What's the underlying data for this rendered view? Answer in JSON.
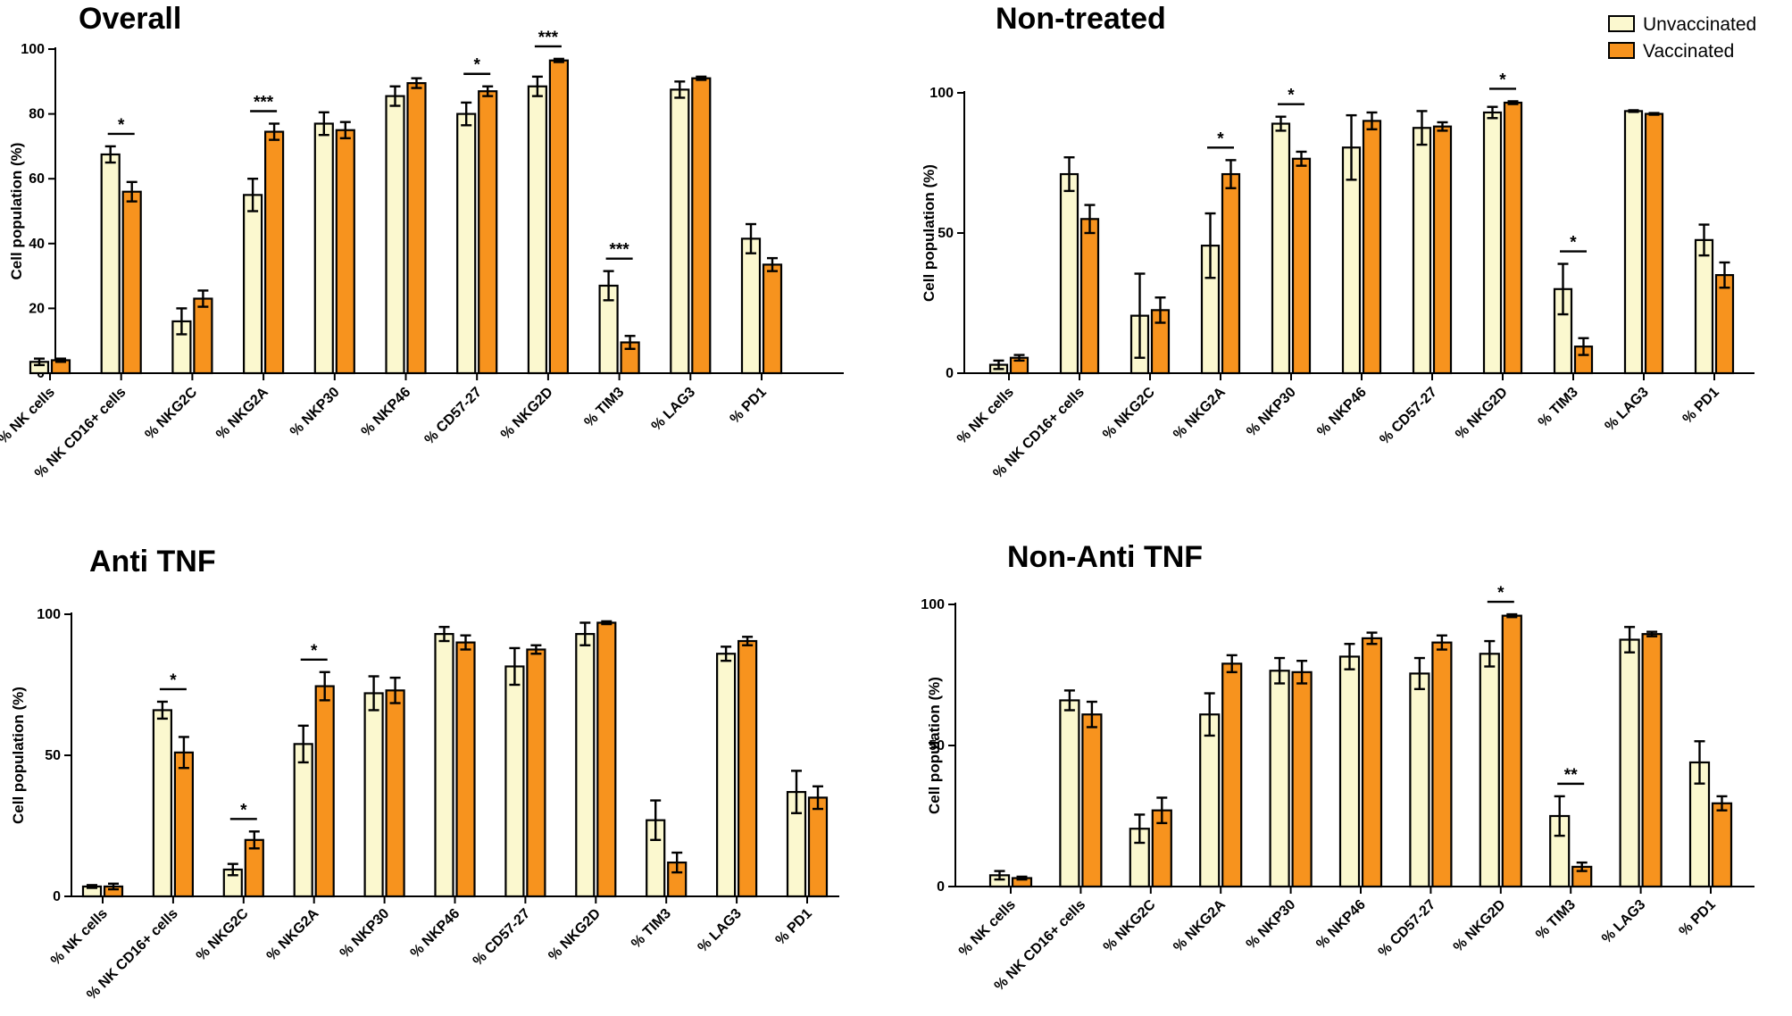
{
  "legend": {
    "unvaccinated_label": "Unvaccinated",
    "vaccinated_label": "Vaccinated",
    "unvaccinated_color": "#fbf8cf",
    "vaccinated_color": "#f7931e"
  },
  "chart_data": [
    {
      "type": "bar",
      "title": "Overall",
      "ylabel": "Cell population (%)",
      "ylim": [
        0,
        100
      ],
      "yticks": [
        0,
        20,
        40,
        60,
        80,
        100
      ],
      "categories": [
        "% NK cells",
        "% NK CD16+ cells",
        "% NKG2C",
        "% NKG2A",
        "% NKP30",
        "% NKP46",
        "% CD57-27",
        "% NKG2D",
        "% TIM3",
        "% LAG3",
        "% PD1"
      ],
      "series": [
        {
          "name": "Unvaccinated",
          "values": [
            3.5,
            67.5,
            16,
            55,
            77,
            85.5,
            80,
            88.5,
            27,
            87.5,
            41.5
          ],
          "errors": [
            1,
            2.5,
            4,
            5,
            3.5,
            3,
            3.5,
            3,
            4.5,
            2.5,
            4.5
          ]
        },
        {
          "name": "Vaccinated",
          "values": [
            4,
            56,
            23,
            74.5,
            75,
            89.5,
            87,
            96.5,
            9.5,
            91,
            33.5
          ],
          "errors": [
            0.5,
            3,
            2.5,
            2.5,
            2.5,
            1.5,
            1.5,
            0.5,
            2,
            0.5,
            2
          ]
        }
      ],
      "annotations": [
        {
          "text": "*",
          "category_index": 1
        },
        {
          "text": "***",
          "category_index": 3
        },
        {
          "text": "*",
          "category_index": 6
        },
        {
          "text": "***",
          "category_index": 7
        },
        {
          "text": "***",
          "category_index": 8
        }
      ]
    },
    {
      "type": "bar",
      "title": "Non-treated",
      "ylabel": "Cell population (%)",
      "ylim": [
        0,
        100
      ],
      "yticks": [
        0,
        50,
        100
      ],
      "categories": [
        "% NK cells",
        "% NK CD16+ cells",
        "% NKG2C",
        "% NKG2A",
        "% NKP30",
        "% NKP46",
        "% CD57-27",
        "% NKG2D",
        "% TIM3",
        "% LAG3",
        "% PD1"
      ],
      "series": [
        {
          "name": "Unvaccinated",
          "values": [
            3,
            71,
            20.5,
            45.5,
            89,
            80.5,
            87.5,
            93,
            30,
            93.5,
            47.5
          ],
          "errors": [
            1.5,
            6,
            15,
            11.5,
            2.5,
            11.5,
            6,
            2,
            9,
            0.3,
            5.5
          ]
        },
        {
          "name": "Vaccinated",
          "values": [
            5.5,
            55,
            22.5,
            71,
            76.5,
            90,
            88,
            96.5,
            9.5,
            92.5,
            35
          ],
          "errors": [
            1,
            5,
            4.5,
            5,
            2.5,
            3,
            1.5,
            0.5,
            3,
            0.3,
            4.5
          ]
        }
      ],
      "annotations": [
        {
          "text": "*",
          "category_index": 3
        },
        {
          "text": "*",
          "category_index": 4
        },
        {
          "text": "*",
          "category_index": 7
        },
        {
          "text": "*",
          "category_index": 8
        }
      ]
    },
    {
      "type": "bar",
      "title": "Anti TNF",
      "ylabel": "Cell population (%)",
      "ylim": [
        0,
        100
      ],
      "yticks": [
        0,
        50,
        100
      ],
      "categories": [
        "% NK cells",
        "% NK CD16+ cells",
        "% NKG2C",
        "% NKG2A",
        "% NKP30",
        "% NKP46",
        "% CD57-27",
        "% NKG2D",
        "% TIM3",
        "% LAG3",
        "% PD1"
      ],
      "series": [
        {
          "name": "Unvaccinated",
          "values": [
            3.5,
            66,
            9.5,
            54,
            72,
            93,
            81.5,
            93,
            27,
            86,
            37
          ],
          "errors": [
            0.5,
            3,
            2,
            6.5,
            6,
            2.5,
            6.5,
            4,
            7,
            2.5,
            7.5
          ]
        },
        {
          "name": "Vaccinated",
          "values": [
            3.5,
            51,
            20,
            74.5,
            73,
            90,
            87.5,
            97,
            12,
            90.5,
            35
          ],
          "errors": [
            1,
            5.5,
            3,
            5,
            4.5,
            2.5,
            1.5,
            0.5,
            3.5,
            1.5,
            4
          ]
        }
      ],
      "annotations": [
        {
          "text": "*",
          "category_index": 1
        },
        {
          "text": "*",
          "category_index": 2
        },
        {
          "text": "*",
          "category_index": 3
        }
      ]
    },
    {
      "type": "bar",
      "title": "Non-Anti TNF",
      "ylabel": "Cell population (%)",
      "ylim": [
        0,
        100
      ],
      "yticks": [
        0,
        50,
        100
      ],
      "categories": [
        "% NK cells",
        "% NK CD16+ cells",
        "% NKG2C",
        "% NKG2A",
        "% NKP30",
        "% NKP46",
        "% CD57-27",
        "% NKG2D",
        "% TIM3",
        "% LAG3",
        "% PD1"
      ],
      "series": [
        {
          "name": "Unvaccinated",
          "values": [
            4,
            66,
            20.5,
            61,
            76.5,
            81.5,
            75.5,
            82.5,
            25,
            87.5,
            44
          ],
          "errors": [
            1.5,
            3.5,
            5,
            7.5,
            4.5,
            4.5,
            5.5,
            4.5,
            7,
            4.5,
            7.5
          ]
        },
        {
          "name": "Vaccinated",
          "values": [
            3,
            61,
            27,
            79,
            76,
            88,
            86.5,
            96,
            7,
            89.5,
            29.5
          ],
          "errors": [
            0.5,
            4.5,
            4.5,
            3,
            4,
            2,
            2.5,
            0.5,
            1.5,
            0.8,
            2.5
          ]
        }
      ],
      "annotations": [
        {
          "text": "*",
          "category_index": 7
        },
        {
          "text": "**",
          "category_index": 8
        }
      ]
    }
  ]
}
